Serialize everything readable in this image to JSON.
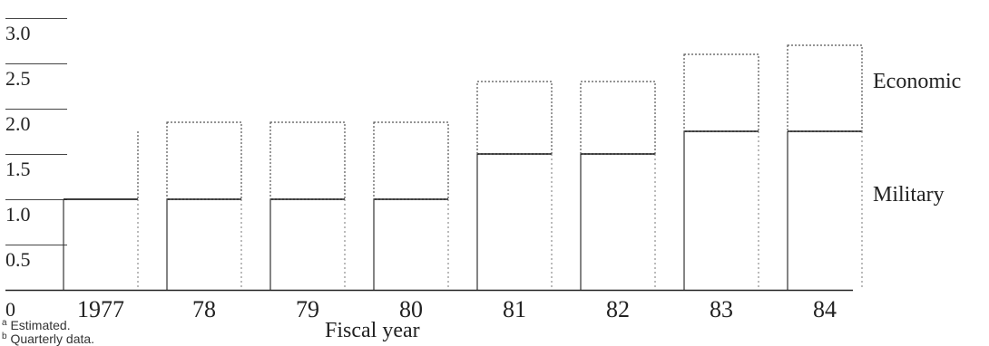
{
  "chart_data": {
    "type": "bar",
    "stacked": true,
    "categories": [
      "1977",
      "78",
      "79",
      "80",
      "81",
      "82",
      "83",
      "84"
    ],
    "series": [
      {
        "name": "Military",
        "values": [
          1.0,
          1.0,
          1.0,
          1.0,
          1.5,
          1.5,
          1.75,
          1.75
        ]
      },
      {
        "name": "Economic",
        "values": [
          0.75,
          0.85,
          0.85,
          0.85,
          0.8,
          0.8,
          0.85,
          0.95
        ]
      }
    ],
    "xlabel": "Fiscal year",
    "ylabel": "",
    "ylim": [
      0,
      3.0
    ],
    "yticks": [
      "0",
      "0.5",
      "1.0",
      "1.5",
      "2.0",
      "2.5",
      "3.0"
    ],
    "grid": false,
    "legend_placement": "right",
    "notes": [
      "Estimated.",
      "Quarterly data."
    ],
    "note_markers": [
      "a",
      "b"
    ]
  }
}
